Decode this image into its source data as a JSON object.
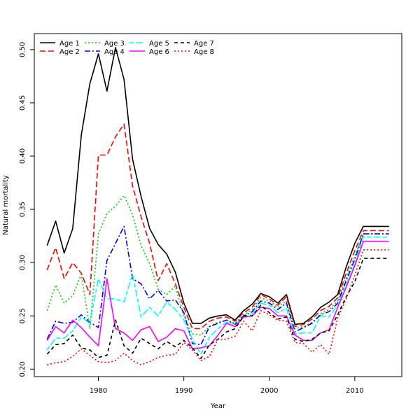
{
  "chart_data": {
    "type": "line",
    "title": "",
    "xlabel": "Year",
    "ylabel": "Natural mortality",
    "xlim": [
      1972.5,
      2015.5
    ],
    "ylim": [
      0.193,
      0.515
    ],
    "xticks": [
      1980,
      1990,
      2000,
      2010
    ],
    "yticks": [
      0.2,
      0.25,
      0.3,
      0.35,
      0.4,
      0.45,
      0.5
    ],
    "ytick_labels": [
      "0.20",
      "0.25",
      "0.30",
      "0.35",
      "0.40",
      "0.45",
      "0.50"
    ],
    "grid": false,
    "legend_position": "top-left",
    "x": [
      1974,
      1975,
      1976,
      1977,
      1978,
      1979,
      1980,
      1981,
      1982,
      1983,
      1984,
      1985,
      1986,
      1987,
      1988,
      1989,
      1990,
      1991,
      1992,
      1993,
      1994,
      1995,
      1996,
      1997,
      1998,
      1999,
      2000,
      2001,
      2002,
      2003,
      2004,
      2005,
      2006,
      2007,
      2008,
      2009,
      2010,
      2011,
      2012,
      2013,
      2014
    ],
    "series": [
      {
        "name": "Age 1",
        "color": "#000000",
        "dash": "solid",
        "values": [
          0.316,
          0.339,
          0.309,
          0.332,
          0.42,
          0.468,
          0.496,
          0.461,
          0.502,
          0.472,
          0.397,
          0.362,
          0.332,
          0.317,
          0.308,
          0.291,
          0.262,
          0.243,
          0.243,
          0.248,
          0.25,
          0.251,
          0.246,
          0.255,
          0.261,
          0.271,
          0.268,
          0.262,
          0.27,
          0.242,
          0.243,
          0.249,
          0.258,
          0.263,
          0.27,
          0.296,
          0.318,
          0.334,
          0.334,
          0.334,
          0.334
        ]
      },
      {
        "name": "Age 2",
        "color": "#ff0000",
        "dash": "longdash",
        "values": [
          0.293,
          0.314,
          0.285,
          0.3,
          0.29,
          0.27,
          0.401,
          0.401,
          0.418,
          0.43,
          0.372,
          0.343,
          0.318,
          0.283,
          0.299,
          0.28,
          0.258,
          0.238,
          0.238,
          0.245,
          0.248,
          0.249,
          0.245,
          0.253,
          0.258,
          0.27,
          0.266,
          0.26,
          0.268,
          0.24,
          0.242,
          0.247,
          0.255,
          0.259,
          0.267,
          0.29,
          0.311,
          0.33,
          0.33,
          0.33,
          0.33
        ]
      },
      {
        "name": "Age 3",
        "color": "#00cc00",
        "dash": "dotted",
        "values": [
          0.255,
          0.279,
          0.262,
          0.269,
          0.289,
          0.238,
          0.327,
          0.346,
          0.353,
          0.363,
          0.345,
          0.316,
          0.299,
          0.275,
          0.27,
          0.278,
          0.25,
          0.233,
          0.232,
          0.24,
          0.244,
          0.246,
          0.243,
          0.251,
          0.256,
          0.267,
          0.264,
          0.258,
          0.264,
          0.238,
          0.24,
          0.244,
          0.252,
          0.256,
          0.264,
          0.286,
          0.306,
          0.327,
          0.327,
          0.327,
          0.327
        ]
      },
      {
        "name": "Age 4",
        "color": "#0000ff",
        "dash": "dashdot",
        "values": [
          0.228,
          0.245,
          0.243,
          0.244,
          0.251,
          0.244,
          0.239,
          0.302,
          0.318,
          0.334,
          0.285,
          0.28,
          0.266,
          0.274,
          0.264,
          0.265,
          0.253,
          0.224,
          0.223,
          0.24,
          0.243,
          0.246,
          0.242,
          0.25,
          0.254,
          0.264,
          0.262,
          0.256,
          0.262,
          0.235,
          0.239,
          0.243,
          0.251,
          0.254,
          0.262,
          0.283,
          0.303,
          0.327,
          0.327,
          0.327,
          0.327
        ]
      },
      {
        "name": "Age 5",
        "color": "#00ffff",
        "dash": "twodash",
        "values": [
          0.218,
          0.229,
          0.229,
          0.236,
          0.249,
          0.243,
          0.285,
          0.266,
          0.266,
          0.263,
          0.289,
          0.249,
          0.258,
          0.25,
          0.263,
          0.256,
          0.246,
          0.228,
          0.214,
          0.23,
          0.238,
          0.244,
          0.242,
          0.248,
          0.252,
          0.262,
          0.26,
          0.253,
          0.257,
          0.233,
          0.234,
          0.234,
          0.25,
          0.249,
          0.26,
          0.279,
          0.299,
          0.324,
          0.324,
          0.324,
          0.324
        ]
      },
      {
        "name": "Age 6",
        "color": "#ff00ff",
        "dash": "solid",
        "values": [
          0.227,
          0.24,
          0.234,
          0.246,
          0.239,
          0.23,
          0.222,
          0.285,
          0.238,
          0.234,
          0.227,
          0.237,
          0.24,
          0.226,
          0.23,
          0.238,
          0.236,
          0.219,
          0.22,
          0.222,
          0.232,
          0.243,
          0.24,
          0.249,
          0.25,
          0.258,
          0.257,
          0.25,
          0.25,
          0.232,
          0.227,
          0.227,
          0.234,
          0.237,
          0.258,
          0.277,
          0.297,
          0.32,
          0.32,
          0.32,
          0.32
        ]
      },
      {
        "name": "Age 7",
        "color": "#000000",
        "dash": "dashed",
        "values": [
          0.214,
          0.223,
          0.224,
          0.232,
          0.22,
          0.218,
          0.211,
          0.213,
          0.246,
          0.222,
          0.215,
          0.229,
          0.224,
          0.219,
          0.226,
          0.221,
          0.227,
          0.22,
          0.21,
          0.223,
          0.228,
          0.235,
          0.238,
          0.25,
          0.25,
          0.26,
          0.253,
          0.247,
          0.249,
          0.228,
          0.226,
          0.228,
          0.234,
          0.236,
          0.251,
          0.268,
          0.282,
          0.304,
          0.304,
          0.304,
          0.304
        ]
      },
      {
        "name": "Age 8",
        "color": "#ff0000",
        "dash": "dotted",
        "values": [
          0.204,
          0.206,
          0.207,
          0.212,
          0.219,
          0.213,
          0.207,
          0.206,
          0.208,
          0.215,
          0.208,
          0.204,
          0.207,
          0.211,
          0.213,
          0.214,
          0.225,
          0.218,
          0.208,
          0.212,
          0.228,
          0.228,
          0.231,
          0.245,
          0.236,
          0.255,
          0.251,
          0.246,
          0.245,
          0.225,
          0.224,
          0.216,
          0.223,
          0.214,
          0.248,
          0.266,
          0.288,
          0.312,
          0.312,
          0.312,
          0.312
        ]
      }
    ]
  }
}
